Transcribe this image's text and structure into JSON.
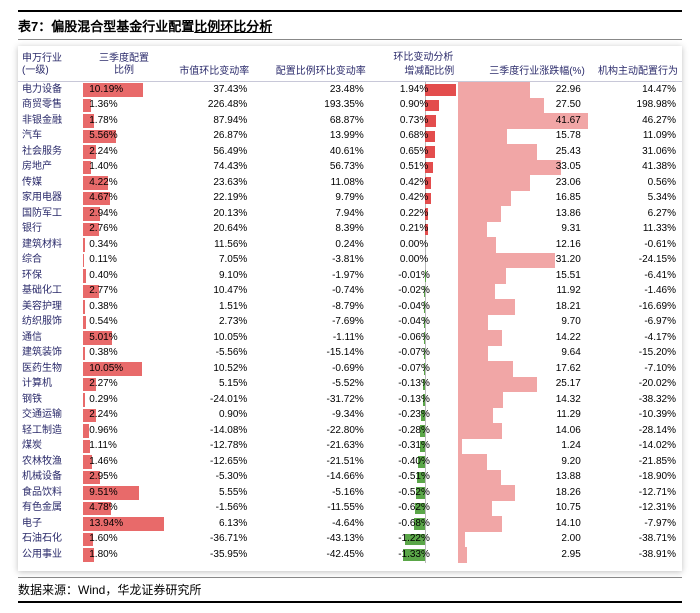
{
  "title_prefix": "表7：偏股混合型基金行业配置",
  "title_underlined": "比例环比分析",
  "footer": "数据来源：Wind，华龙证券研究所",
  "headers": {
    "industry": "申万行业\n(一级)",
    "alloc": "三季度配置\n比例",
    "group": "环比变动分析",
    "mv_change": "市值环比变动率",
    "cfg_change": "配置比例环比变动率",
    "chg_ratio": "增减配比例",
    "depth": "三季度行业涨跌幅(%)",
    "active": "机构主动配置行为"
  },
  "colors": {
    "header_text": "#2c2c6c",
    "alloc_bar": "#e86a6a",
    "pos_bar": "#e34d4d",
    "neg_bar": "#5aa648",
    "dep_bg": "#f1a6a6",
    "row_text": "#222"
  },
  "scales": {
    "alloc_max": 14.0,
    "chg_abs_max": 2.0,
    "dep_max": 42.0
  },
  "rows": [
    {
      "ind": "电力设备",
      "alloc": 10.19,
      "mv": 37.43,
      "cfg": 23.48,
      "chg": 1.94,
      "dep": 22.96,
      "act": 14.47
    },
    {
      "ind": "商贸零售",
      "alloc": 1.36,
      "mv": 226.48,
      "cfg": 193.35,
      "chg": 0.9,
      "dep": 27.5,
      "act": 198.98
    },
    {
      "ind": "非银金融",
      "alloc": 1.78,
      "mv": 87.94,
      "cfg": 68.87,
      "chg": 0.73,
      "dep": 41.67,
      "act": 46.27
    },
    {
      "ind": "汽车",
      "alloc": 5.56,
      "mv": 26.87,
      "cfg": 13.99,
      "chg": 0.68,
      "dep": 15.78,
      "act": 11.09
    },
    {
      "ind": "社会服务",
      "alloc": 2.24,
      "mv": 56.49,
      "cfg": 40.61,
      "chg": 0.65,
      "dep": 25.43,
      "act": 31.06
    },
    {
      "ind": "房地产",
      "alloc": 1.4,
      "mv": 74.43,
      "cfg": 56.73,
      "chg": 0.51,
      "dep": 33.05,
      "act": 41.38
    },
    {
      "ind": "传媒",
      "alloc": 4.22,
      "mv": 23.63,
      "cfg": 11.08,
      "chg": 0.42,
      "dep": 23.06,
      "act": 0.56
    },
    {
      "ind": "家用电器",
      "alloc": 4.67,
      "mv": 22.19,
      "cfg": 9.79,
      "chg": 0.42,
      "dep": 16.85,
      "act": 5.34
    },
    {
      "ind": "国防军工",
      "alloc": 2.94,
      "mv": 20.13,
      "cfg": 7.94,
      "chg": 0.22,
      "dep": 13.86,
      "act": 6.27
    },
    {
      "ind": "银行",
      "alloc": 2.76,
      "mv": 20.64,
      "cfg": 8.39,
      "chg": 0.21,
      "dep": 9.31,
      "act": 11.33
    },
    {
      "ind": "建筑材料",
      "alloc": 0.34,
      "mv": 11.56,
      "cfg": 0.24,
      "chg": 0.0,
      "dep": 12.16,
      "act": -0.61
    },
    {
      "ind": "综合",
      "alloc": 0.11,
      "mv": 7.05,
      "cfg": -3.81,
      "chg": 0.0,
      "dep": 31.2,
      "act": -24.15
    },
    {
      "ind": "环保",
      "alloc": 0.4,
      "mv": 9.1,
      "cfg": -1.97,
      "chg": -0.01,
      "dep": 15.51,
      "act": -6.41
    },
    {
      "ind": "基础化工",
      "alloc": 2.77,
      "mv": 10.47,
      "cfg": -0.74,
      "chg": -0.02,
      "dep": 11.92,
      "act": -1.46
    },
    {
      "ind": "美容护理",
      "alloc": 0.38,
      "mv": 1.51,
      "cfg": -8.79,
      "chg": -0.04,
      "dep": 18.21,
      "act": -16.69
    },
    {
      "ind": "纺织服饰",
      "alloc": 0.54,
      "mv": 2.73,
      "cfg": -7.69,
      "chg": -0.04,
      "dep": 9.7,
      "act": -6.97
    },
    {
      "ind": "通信",
      "alloc": 5.01,
      "mv": 10.05,
      "cfg": -1.11,
      "chg": -0.06,
      "dep": 14.22,
      "act": -4.17
    },
    {
      "ind": "建筑装饰",
      "alloc": 0.38,
      "mv": -5.56,
      "cfg": -15.14,
      "chg": -0.07,
      "dep": 9.64,
      "act": -15.2
    },
    {
      "ind": "医药生物",
      "alloc": 10.05,
      "mv": 10.52,
      "cfg": -0.69,
      "chg": -0.07,
      "dep": 17.62,
      "act": -7.1
    },
    {
      "ind": "计算机",
      "alloc": 2.27,
      "mv": 5.15,
      "cfg": -5.52,
      "chg": -0.13,
      "dep": 25.17,
      "act": -20.02
    },
    {
      "ind": "钢铁",
      "alloc": 0.29,
      "mv": -24.01,
      "cfg": -31.72,
      "chg": -0.13,
      "dep": 14.32,
      "act": -38.32
    },
    {
      "ind": "交通运输",
      "alloc": 2.24,
      "mv": 0.9,
      "cfg": -9.34,
      "chg": -0.23,
      "dep": 11.29,
      "act": -10.39
    },
    {
      "ind": "轻工制造",
      "alloc": 0.96,
      "mv": -14.08,
      "cfg": -22.8,
      "chg": -0.28,
      "dep": 14.06,
      "act": -28.14
    },
    {
      "ind": "煤炭",
      "alloc": 1.11,
      "mv": -12.78,
      "cfg": -21.63,
      "chg": -0.31,
      "dep": 1.24,
      "act": -14.02
    },
    {
      "ind": "农林牧渔",
      "alloc": 1.46,
      "mv": -12.65,
      "cfg": -21.51,
      "chg": -0.4,
      "dep": 9.2,
      "act": -21.85
    },
    {
      "ind": "机械设备",
      "alloc": 2.95,
      "mv": -5.3,
      "cfg": -14.66,
      "chg": -0.51,
      "dep": 13.88,
      "act": -18.9
    },
    {
      "ind": "食品饮料",
      "alloc": 9.51,
      "mv": 5.55,
      "cfg": -5.16,
      "chg": -0.52,
      "dep": 18.26,
      "act": -12.71
    },
    {
      "ind": "有色金属",
      "alloc": 4.78,
      "mv": -1.56,
      "cfg": -11.55,
      "chg": -0.62,
      "dep": 10.75,
      "act": -12.31
    },
    {
      "ind": "电子",
      "alloc": 13.94,
      "mv": 6.13,
      "cfg": -4.64,
      "chg": -0.68,
      "dep": 14.1,
      "act": -7.97
    },
    {
      "ind": "石油石化",
      "alloc": 1.6,
      "mv": -36.71,
      "cfg": -43.13,
      "chg": -1.22,
      "dep": 2.0,
      "act": -38.71
    },
    {
      "ind": "公用事业",
      "alloc": 1.8,
      "mv": -35.95,
      "cfg": -42.45,
      "chg": -1.33,
      "dep": 2.95,
      "act": -38.91
    }
  ]
}
